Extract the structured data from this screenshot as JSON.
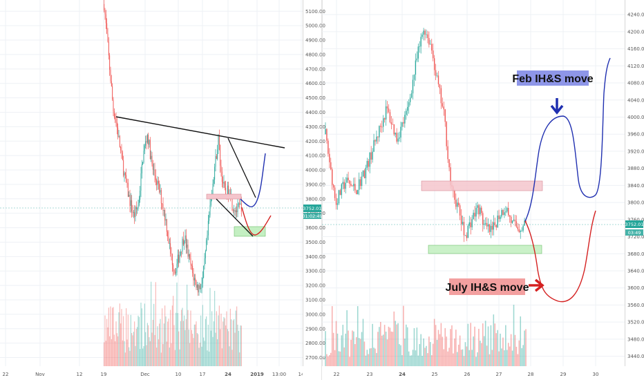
{
  "chart_data": [
    {
      "type": "candlestick",
      "title": "",
      "x_ticks": [
        "22",
        "Nov",
        "12",
        "19",
        "Dec",
        "10",
        "17",
        "24",
        "2019",
        "13:00",
        "14"
      ],
      "y_ticks": [
        "2700.00",
        "2800.00",
        "2900.00",
        "3000.00",
        "3100.00",
        "3200.00",
        "3300.00",
        "3400.00",
        "3500.00",
        "3600.00",
        "3700.00",
        "3800.00",
        "3900.00",
        "4000.00",
        "4100.00",
        "4200.00",
        "4300.00",
        "4400.00",
        "4500.00",
        "4600.00",
        "4700.00",
        "4800.00",
        "4900.00",
        "5000.00",
        "5100.00"
      ],
      "ylim": [
        2650,
        5130
      ],
      "price_label": "3752.01",
      "countdown_label": "01:02:49",
      "price_trend": [
        {
          "d": 0,
          "p": 5150
        },
        {
          "d": 2,
          "p": 4780
        },
        {
          "d": 4,
          "p": 4420
        },
        {
          "d": 5,
          "p": 4360
        },
        {
          "d": 7,
          "p": 4150
        },
        {
          "d": 9,
          "p": 3950
        },
        {
          "d": 11,
          "p": 3800
        },
        {
          "d": 13,
          "p": 3680
        },
        {
          "d": 15,
          "p": 3760
        },
        {
          "d": 17,
          "p": 4100
        },
        {
          "d": 19,
          "p": 4250
        },
        {
          "d": 21,
          "p": 4020
        },
        {
          "d": 23,
          "p": 3920
        },
        {
          "d": 25,
          "p": 3800
        },
        {
          "d": 27,
          "p": 3650
        },
        {
          "d": 29,
          "p": 3420
        },
        {
          "d": 31,
          "p": 3300
        },
        {
          "d": 33,
          "p": 3420
        },
        {
          "d": 35,
          "p": 3550
        },
        {
          "d": 37,
          "p": 3390
        },
        {
          "d": 39,
          "p": 3260
        },
        {
          "d": 41,
          "p": 3180
        },
        {
          "d": 43,
          "p": 3220
        },
        {
          "d": 45,
          "p": 3520
        },
        {
          "d": 47,
          "p": 3860
        },
        {
          "d": 49,
          "p": 4100
        },
        {
          "d": 50,
          "p": 4220
        },
        {
          "d": 51,
          "p": 4000
        },
        {
          "d": 53,
          "p": 3820
        },
        {
          "d": 55,
          "p": 3880
        },
        {
          "d": 56,
          "p": 3760
        },
        {
          "d": 58,
          "p": 3720
        },
        {
          "d": 60,
          "p": 3752
        }
      ]
    },
    {
      "type": "candlestick",
      "title": "",
      "x_ticks": [
        "22",
        "23",
        "24",
        "25",
        "26",
        "27",
        "28",
        "29",
        "30"
      ],
      "y_ticks": [
        "3440.00",
        "3480.00",
        "3520.00",
        "3560.00",
        "3600.00",
        "3640.00",
        "3680.00",
        "3720.00",
        "3760.00",
        "3800.00",
        "3840.00",
        "3880.00",
        "3920.00",
        "3960.00",
        "4000.00",
        "4040.00",
        "4080.00",
        "4120.00",
        "4160.00",
        "4200.00",
        "4240.00"
      ],
      "ylim": [
        3420,
        4258
      ],
      "price_label": "3752.01",
      "countdown_label": "03:49",
      "price_trend": [
        {
          "d": 0,
          "p": 3960
        },
        {
          "d": 3,
          "p": 3800
        },
        {
          "d": 6,
          "p": 3850
        },
        {
          "d": 9,
          "p": 3830
        },
        {
          "d": 12,
          "p": 3880
        },
        {
          "d": 15,
          "p": 3950
        },
        {
          "d": 18,
          "p": 4020
        },
        {
          "d": 21,
          "p": 3950
        },
        {
          "d": 24,
          "p": 4010
        },
        {
          "d": 27,
          "p": 4140
        },
        {
          "d": 29,
          "p": 4210
        },
        {
          "d": 31,
          "p": 4170
        },
        {
          "d": 33,
          "p": 4080
        },
        {
          "d": 35,
          "p": 4000
        },
        {
          "d": 37,
          "p": 3830
        },
        {
          "d": 39,
          "p": 3790
        },
        {
          "d": 41,
          "p": 3720
        },
        {
          "d": 43,
          "p": 3760
        },
        {
          "d": 45,
          "p": 3790
        },
        {
          "d": 47,
          "p": 3740
        },
        {
          "d": 49,
          "p": 3730
        },
        {
          "d": 51,
          "p": 3770
        },
        {
          "d": 53,
          "p": 3790
        },
        {
          "d": 55,
          "p": 3750
        },
        {
          "d": 57,
          "p": 3740
        },
        {
          "d": 59,
          "p": 3750
        }
      ]
    }
  ],
  "annotations": {
    "feb_label": "Feb IH&S move",
    "july_label": "July IH&S move"
  },
  "colors": {
    "up": "#26a69a",
    "down": "#ef5350",
    "trendline": "#111111",
    "projection_blue": "#1f2fb0",
    "projection_red": "#d42020",
    "feb_box": "#8e96e8",
    "july_box": "#f3a0a0",
    "pink_zone": "#f5c5cc",
    "green_zone": "#c4efc2",
    "price_tag": "#26a69a"
  }
}
